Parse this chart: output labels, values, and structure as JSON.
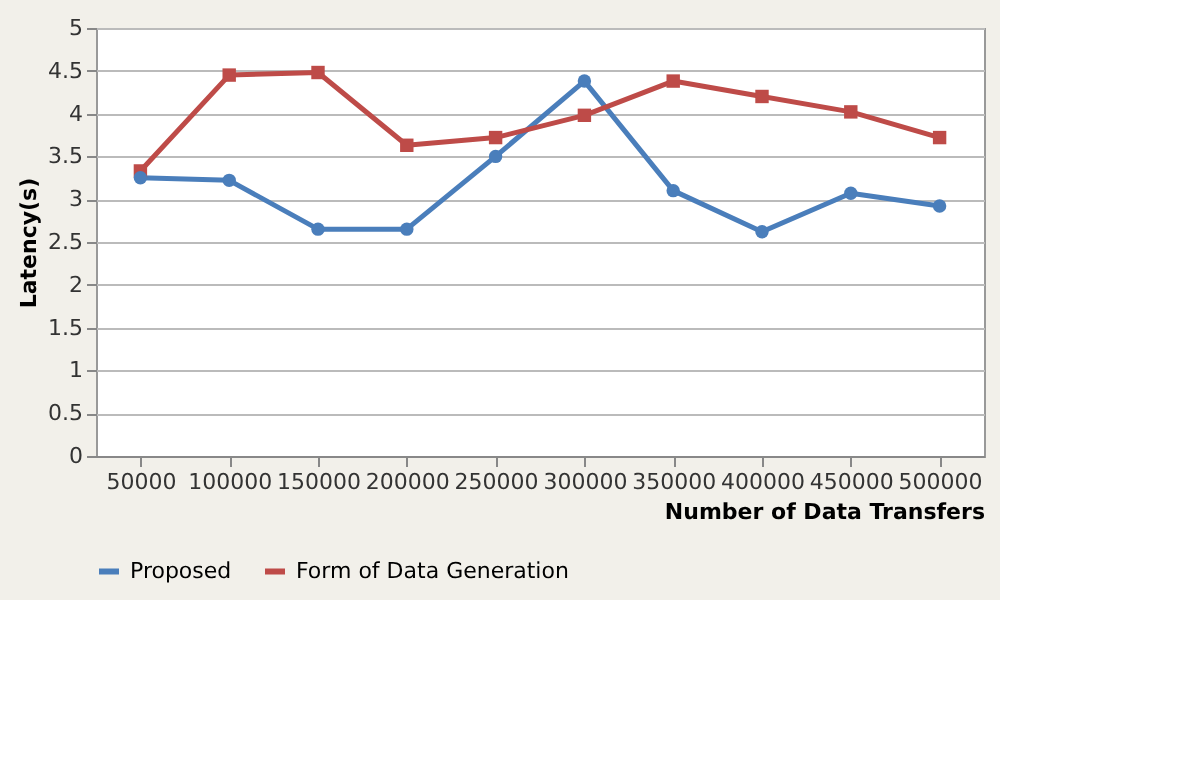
{
  "chart_data": {
    "type": "line",
    "xlabel": "Number of Data Transfers",
    "ylabel": "Latency(s)",
    "categories": [
      "50000",
      "100000",
      "150000",
      "200000",
      "250000",
      "300000",
      "350000",
      "400000",
      "450000",
      "500000"
    ],
    "series": [
      {
        "name": "Proposed",
        "color": "#4a7ebb",
        "marker": "circle",
        "values": [
          3.25,
          3.22,
          2.65,
          2.65,
          3.5,
          4.38,
          3.1,
          2.62,
          3.07,
          2.92
        ]
      },
      {
        "name": "Form of Data Generation",
        "color": "#be4b48",
        "marker": "square",
        "values": [
          3.33,
          4.45,
          4.48,
          3.63,
          3.72,
          3.98,
          4.38,
          4.2,
          4.02,
          3.72
        ]
      }
    ],
    "ylim": [
      0,
      5
    ],
    "yticks": [
      0,
      0.5,
      1,
      1.5,
      2,
      2.5,
      3,
      3.5,
      4,
      4.5,
      5
    ],
    "grid": "y",
    "legend": "bottom",
    "line_style": "solid"
  }
}
